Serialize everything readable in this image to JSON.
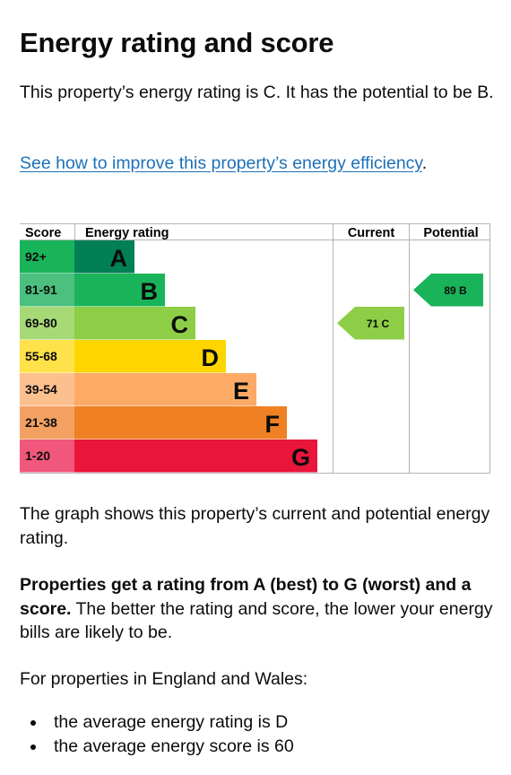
{
  "heading": "Energy rating and score",
  "intro": "This property’s energy rating is C. It has the potential to be B.",
  "improve_link": "See how to improve this property’s energy efficiency",
  "improve_link_suffix": ".",
  "chart_data": {
    "type": "bar",
    "columns": [
      "Score",
      "Energy rating",
      "Current",
      "Potential"
    ],
    "bands": [
      {
        "score": "92+",
        "letter": "A",
        "color": "#008054",
        "score_bg": "#19b459"
      },
      {
        "score": "81-91",
        "letter": "B",
        "color": "#19b459",
        "score_bg": "#4cc07e"
      },
      {
        "score": "69-80",
        "letter": "C",
        "color": "#8dce46",
        "score_bg": "#a8d977"
      },
      {
        "score": "55-68",
        "letter": "D",
        "color": "#ffd500",
        "score_bg": "#ffe24a"
      },
      {
        "score": "39-54",
        "letter": "E",
        "color": "#fcaa65",
        "score_bg": "#fcc08f"
      },
      {
        "score": "21-38",
        "letter": "F",
        "color": "#ef8023",
        "score_bg": "#f3a163"
      },
      {
        "score": "1-20",
        "letter": "G",
        "color": "#e9153b",
        "score_bg": "#f0577a"
      }
    ],
    "current": {
      "score": 71,
      "letter": "C",
      "label": "71 C"
    },
    "potential": {
      "score": 89,
      "letter": "B",
      "label": "89 B"
    }
  },
  "graph_caption": "The graph shows this property’s current and potential energy rating.",
  "ratings_bold": "Properties get a rating from A (best) to G (worst) and a score.",
  "ratings_rest": " The better the rating and score, the lower your energy bills are likely to be.",
  "england_wales": "For properties in England and Wales:",
  "averages": [
    "the average energy rating is D",
    "the average energy score is 60"
  ]
}
